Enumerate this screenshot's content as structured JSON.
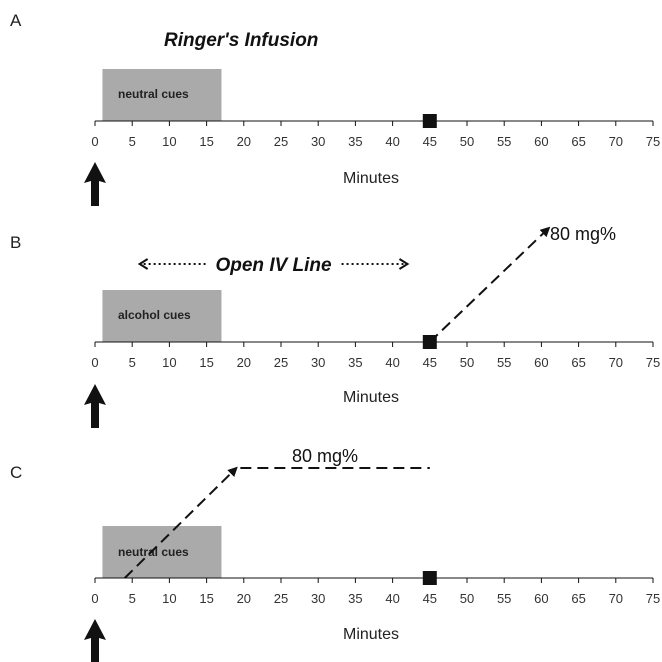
{
  "axis": {
    "label": "Minutes",
    "min": 0,
    "max": 75,
    "step": 5,
    "ticks": [
      "0",
      "5",
      "10",
      "15",
      "20",
      "25",
      "30",
      "35",
      "40",
      "45",
      "50",
      "55",
      "60",
      "65",
      "70",
      "75"
    ]
  },
  "colors": {
    "cue_box": "#aaaaab",
    "ink": "#111111"
  },
  "panels": [
    {
      "letter": "A",
      "title": "Ringer's Infusion",
      "cue_label": "neutral cues",
      "cue_start": 1,
      "cue_end": 17,
      "marker_at": 45,
      "start_arrow_at": 0
    },
    {
      "letter": "B",
      "span_label": "Open IV Line",
      "span_start": 6,
      "span_end": 42,
      "cue_label": "alcohol cues",
      "cue_start": 1,
      "cue_end": 17,
      "marker_at": 45,
      "start_arrow_at": 0,
      "dose_label": "80 mg%",
      "ramp_start": 45,
      "ramp_end": 61
    },
    {
      "letter": "C",
      "cue_label": "neutral cues",
      "cue_start": 1,
      "cue_end": 17,
      "marker_at": 45,
      "start_arrow_at": 0,
      "dose_label": "80 mg%",
      "ramp_start": 4,
      "ramp_end": 19,
      "plateau_end": 45
    }
  ]
}
